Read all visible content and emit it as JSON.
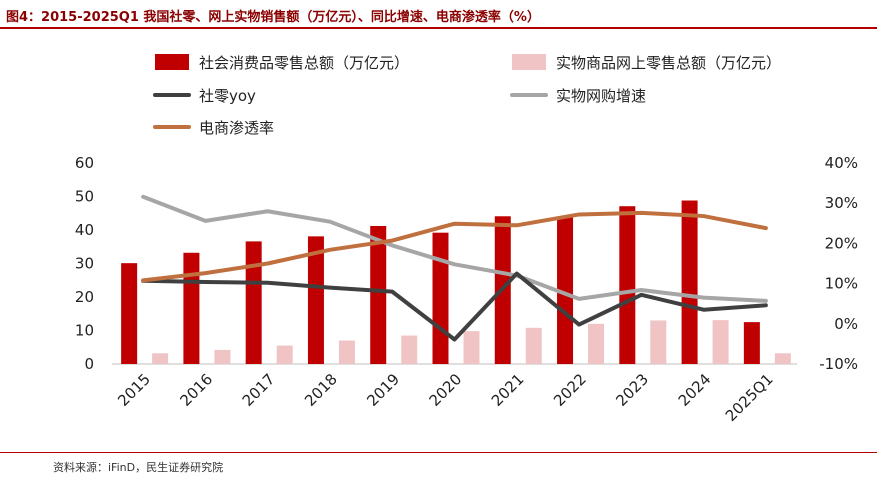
{
  "title": "图4：2015-2025Q1 我国社零、网上实物销售额（万亿元）、同比增速、电商渗透率（%）",
  "source": "资料来源：iFinD，民生证券研究院",
  "chart_data": {
    "type": "bar+line",
    "categories": [
      "2015",
      "2016",
      "2017",
      "2018",
      "2019",
      "2020",
      "2021",
      "2022",
      "2023",
      "2024",
      "2025Q1"
    ],
    "left_axis": {
      "range": [
        0,
        60
      ],
      "ticks": [
        "0",
        "10",
        "20",
        "30",
        "40",
        "50",
        "60"
      ],
      "unit": "万亿元"
    },
    "right_axis": {
      "range": [
        -10,
        40
      ],
      "ticks": [
        "-10%",
        "0%",
        "10%",
        "20%",
        "30%",
        "40%"
      ],
      "unit": "%"
    },
    "series": [
      {
        "name": "社会消费品零售总额（万亿元）",
        "type": "bar",
        "axis": "left",
        "color": "#c00000",
        "values": [
          30.1,
          33.2,
          36.6,
          38.1,
          41.2,
          39.2,
          44.1,
          44.0,
          47.1,
          48.8,
          12.5
        ]
      },
      {
        "name": "实物商品网上零售总额（万亿元）",
        "type": "bar",
        "axis": "left",
        "color": "#f0c4c4",
        "values": [
          3.2,
          4.2,
          5.5,
          7.0,
          8.5,
          9.8,
          10.8,
          12.0,
          13.0,
          13.1,
          3.2
        ]
      },
      {
        "name": "社零yoy",
        "type": "line",
        "axis": "right",
        "color": "#404040",
        "values": [
          10.7,
          10.4,
          10.2,
          9.0,
          8.0,
          -3.9,
          12.5,
          -0.2,
          7.2,
          3.5,
          4.6
        ]
      },
      {
        "name": "实物网购增速",
        "type": "line",
        "axis": "right",
        "color": "#a6a6a6",
        "values": [
          31.6,
          25.6,
          28.0,
          25.4,
          19.5,
          14.8,
          12.0,
          6.2,
          8.4,
          6.5,
          5.7
        ]
      },
      {
        "name": "电商渗透率",
        "type": "line",
        "axis": "right",
        "color": "#c0703e",
        "values": [
          10.8,
          12.6,
          15.0,
          18.4,
          20.7,
          24.9,
          24.5,
          27.2,
          27.6,
          26.8,
          23.8
        ]
      }
    ]
  }
}
